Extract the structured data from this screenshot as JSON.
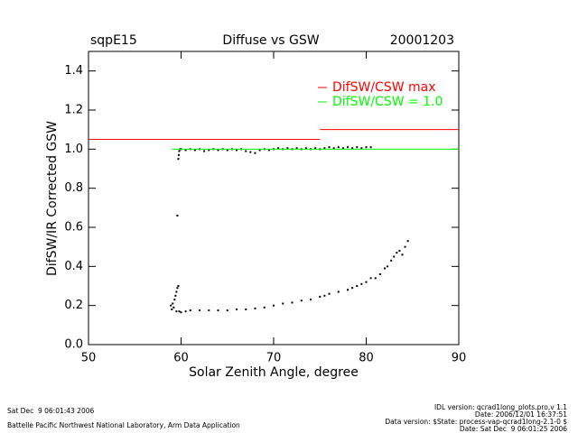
{
  "chart_data": {
    "type": "scatter",
    "title": "Diffuse vs GSW",
    "site": "sqpE15",
    "date": "20001203",
    "xlabel": "Solar Zenith Angle, degree",
    "ylabel": "DifSW/IR Corrected GSW",
    "xlim": [
      50,
      90
    ],
    "ylim": [
      0,
      1.5
    ],
    "xticks": [
      50,
      60,
      70,
      80,
      90
    ],
    "yticks": [
      {
        "value": 0,
        "label": "0.0"
      },
      0.2,
      0.4,
      0.6,
      0.8,
      {
        "value": 1,
        "label": "1.0"
      },
      1.2,
      1.4
    ],
    "legend": "upper right",
    "series": [
      {
        "type": "scatter",
        "color": "#000000",
        "x": [
          59.6,
          59.7,
          59.75,
          59.8,
          59.9,
          60,
          60.5,
          61,
          61.5,
          62,
          62.5,
          63,
          63.5,
          64,
          64.5,
          65,
          65.5,
          66,
          66.5,
          67,
          67.5,
          68,
          68.5,
          69,
          69.5,
          70,
          70.5,
          71,
          71.5,
          72,
          72.5,
          73,
          73.5,
          74,
          74.5,
          75,
          75.5,
          76,
          76.5,
          77,
          77.5,
          78,
          78.5,
          79,
          79.5,
          80,
          80.5,
          58.9,
          59,
          59.1,
          59.2,
          59.3,
          59.4,
          59.5,
          59.6,
          59.7,
          59.5,
          59.8,
          60,
          60.5,
          61,
          62,
          63,
          64,
          65,
          66,
          67,
          68,
          69,
          70,
          71,
          72,
          73,
          74,
          75,
          75.5,
          76,
          77,
          78,
          78.5,
          79,
          79.5,
          80,
          80.5,
          81,
          81.5,
          82,
          82.3,
          82.7,
          83,
          83.3,
          83.6,
          83.9,
          84.2,
          84.5
        ],
        "values": [
          0.66,
          0.95,
          0.97,
          0.99,
          1,
          1,
          0.995,
          1,
          0.995,
          1,
          0.99,
          0.995,
          1,
          0.995,
          1,
          0.995,
          1,
          0.995,
          1,
          0.99,
          0.985,
          0.98,
          0.995,
          1,
          0.995,
          1,
          1.005,
          1,
          1.005,
          1,
          1.005,
          1,
          1.005,
          1,
          1.005,
          1,
          1.005,
          1.01,
          1.005,
          1.01,
          1.005,
          1.01,
          1.005,
          1.01,
          1.005,
          1.01,
          1.01,
          0.2,
          0.18,
          0.21,
          0.19,
          0.23,
          0.25,
          0.27,
          0.29,
          0.3,
          0.17,
          0.17,
          0.165,
          0.17,
          0.175,
          0.175,
          0.175,
          0.175,
          0.175,
          0.18,
          0.18,
          0.185,
          0.19,
          0.2,
          0.21,
          0.215,
          0.225,
          0.23,
          0.245,
          0.25,
          0.26,
          0.27,
          0.28,
          0.29,
          0.3,
          0.31,
          0.32,
          0.34,
          0.34,
          0.36,
          0.39,
          0.4,
          0.43,
          0.45,
          0.47,
          0.48,
          0.46,
          0.5,
          0.53
        ]
      },
      {
        "type": "line",
        "name": "DifSW/CSW max",
        "color": "#ff0000",
        "x": [
          50,
          75,
          75,
          75,
          90
        ],
        "values": [
          1.05,
          1.05,
          null,
          1.1,
          1.1
        ]
      },
      {
        "type": "line",
        "name": "DifSW/CSW = 1.0",
        "color": "#00ff00",
        "x": [
          59,
          90
        ],
        "values": [
          1,
          1
        ]
      }
    ]
  },
  "footer": {
    "left": [
      "Sat Dec  9 06:01:43 2006",
      "Battelle Pacific Northwest National Laboratory, Arm Data Application"
    ],
    "right": [
      "IDL version: qcrad1long_plots.pro,v 1.1",
      "Date: 2006/12/01 16:37:51",
      "Data version: $State: process-vap-qcrad1long-2.1-0 $",
      "Date: Sat Dec  9 06:01:25 2006"
    ]
  }
}
